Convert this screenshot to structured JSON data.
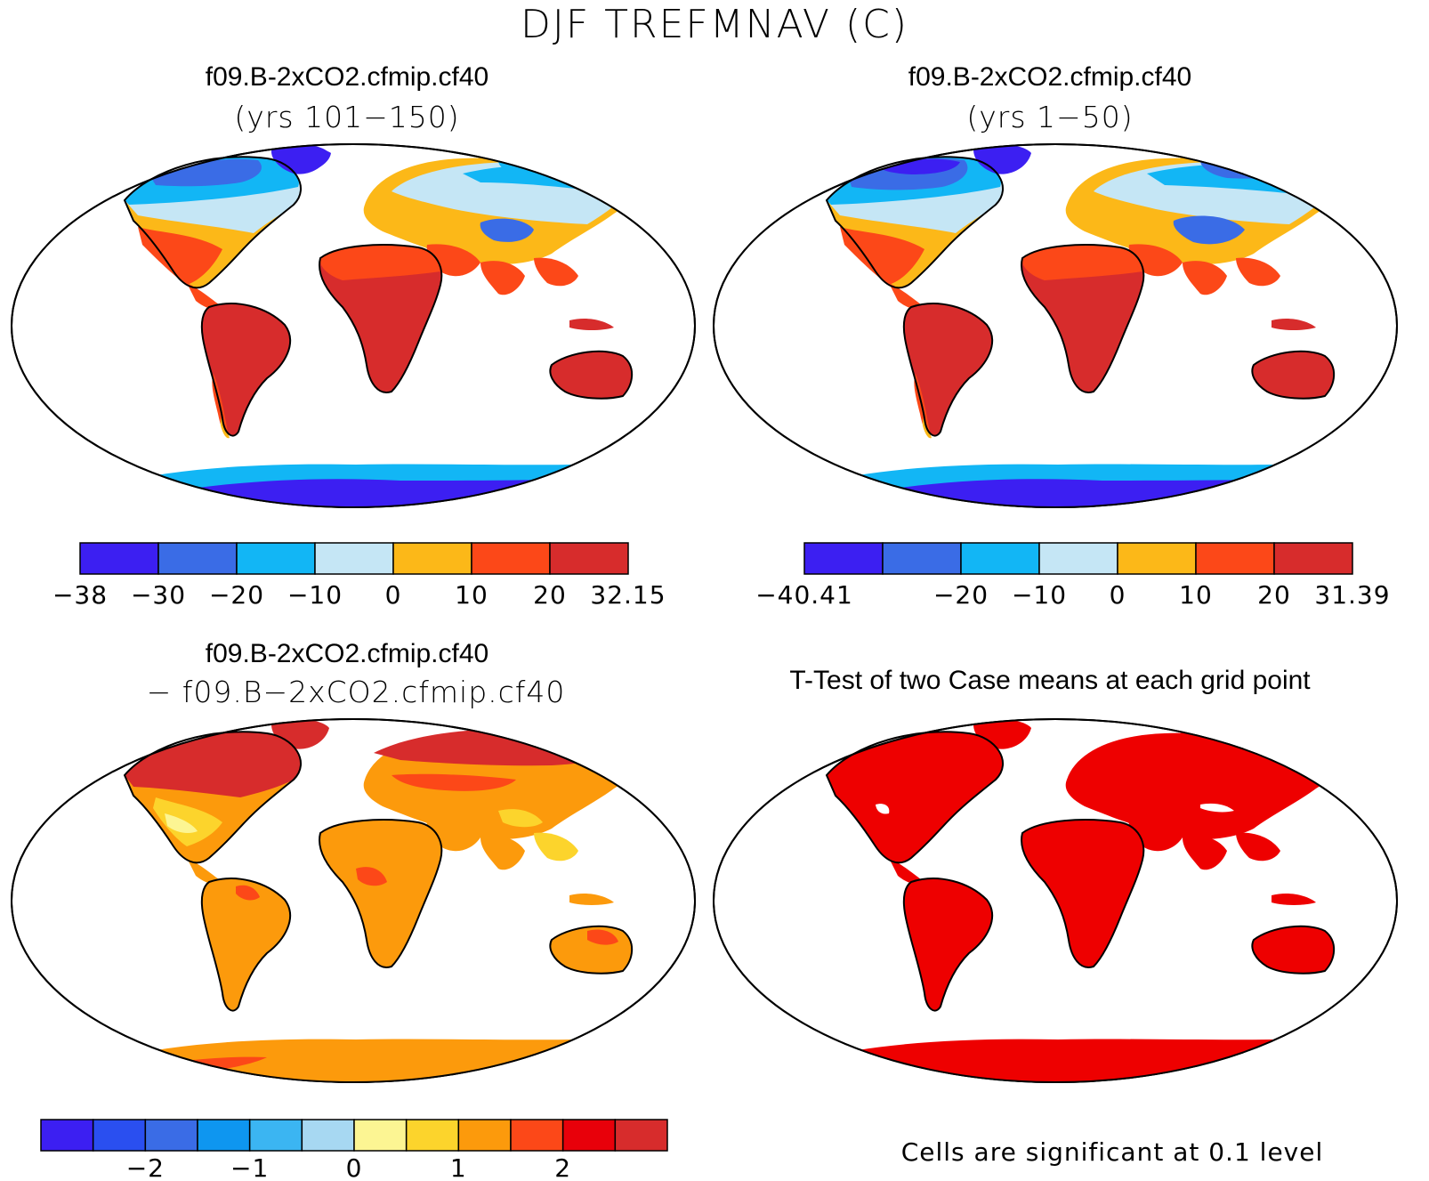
{
  "figure_title": "DJF TREFMNAV (C)",
  "colors": {
    "land_outline": "#000000",
    "ocean": "#ffffff",
    "significant": "#ee0000"
  },
  "panels": [
    {
      "title": "f09.B-2xCO2.cfmip.cf40",
      "subtitle": "(yrs 101−150)",
      "type": "field",
      "colorbar": {
        "colors": [
          "#3c1ff2",
          "#3a6ce6",
          "#12b6f5",
          "#c5e6f5",
          "#fcb818",
          "#fc4818",
          "#d72c2c"
        ],
        "labels": [
          "−38",
          "−30",
          "−20",
          "−10",
          "0",
          "10",
          "20",
          "32.15"
        ],
        "label_positions": [
          0,
          1,
          2,
          3,
          4,
          5,
          6,
          7
        ]
      }
    },
    {
      "title": "f09.B-2xCO2.cfmip.cf40",
      "subtitle": "(yrs 1−50)",
      "type": "field",
      "colorbar": {
        "colors": [
          "#3c1ff2",
          "#3a6ce6",
          "#12b6f5",
          "#c5e6f5",
          "#fcb818",
          "#fc4818",
          "#d72c2c"
        ],
        "labels": [
          "−40.41",
          "−20",
          "−10",
          "0",
          "10",
          "20",
          "31.39"
        ],
        "label_positions": [
          0,
          2,
          3,
          4,
          5,
          6,
          7
        ]
      }
    },
    {
      "title": "f09.B-2xCO2.cfmip.cf40",
      "subtitle": "− f09.B−2xCO2.cfmip.cf40",
      "type": "difference",
      "colorbar": {
        "colors": [
          "#3c1ff2",
          "#2a4ff0",
          "#3a6ce6",
          "#0e96f0",
          "#3bb5f2",
          "#a7d8f2",
          "#fcf593",
          "#fcd42c",
          "#fc9a0c",
          "#fc4818",
          "#e8000a",
          "#d72c2c"
        ],
        "labels": [
          "−2",
          "−1",
          "0",
          "1",
          "2"
        ],
        "label_positions": [
          2,
          4,
          6,
          8,
          10
        ]
      }
    },
    {
      "title": "T-Test of two Case means at each grid point",
      "subtitle": "",
      "type": "significance",
      "note": "Cells are significant at 0.1 level"
    }
  ]
}
